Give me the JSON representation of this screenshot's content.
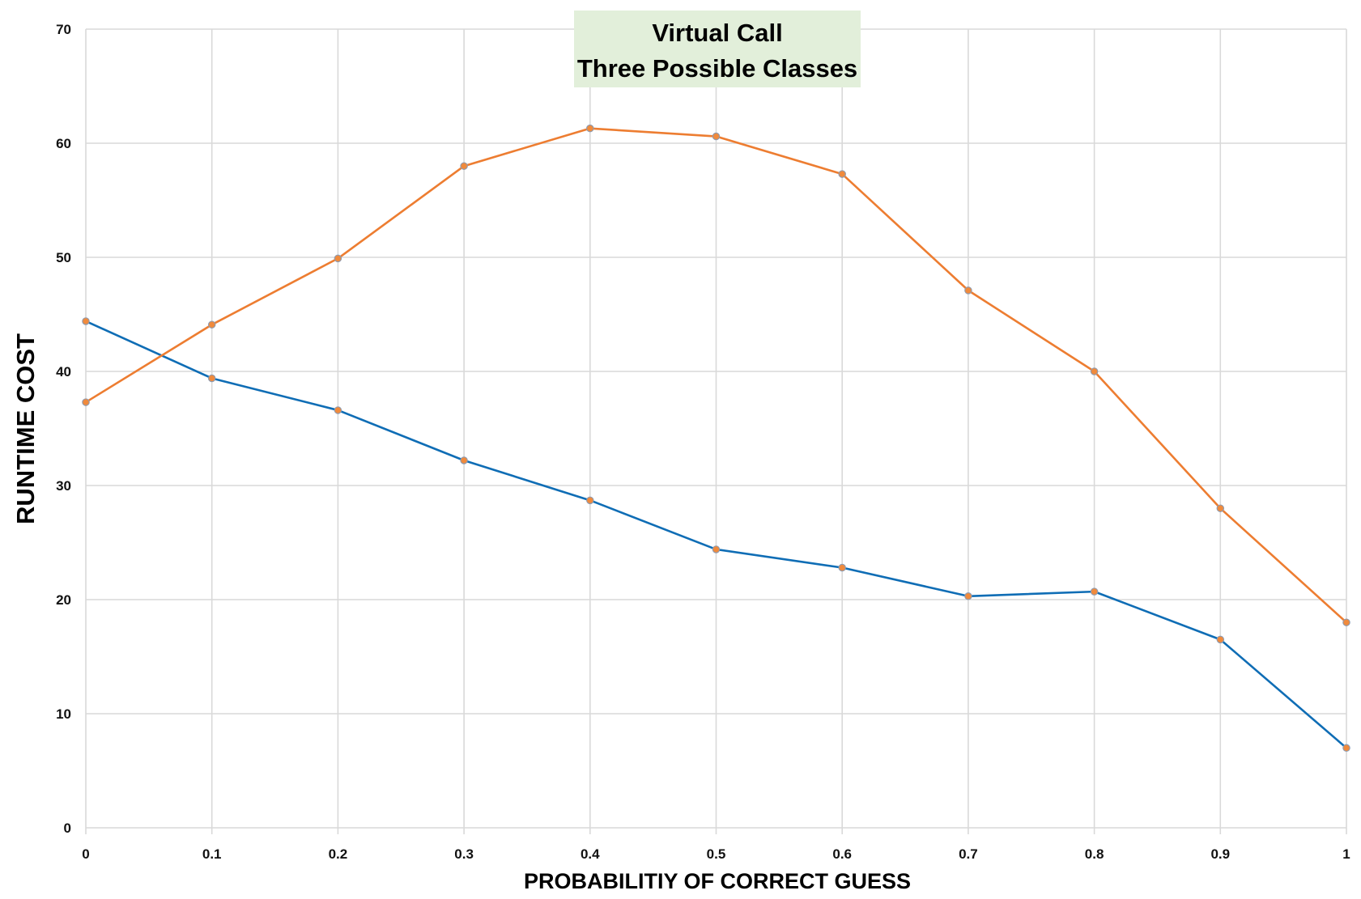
{
  "chart_data": {
    "type": "line",
    "title": "Virtual Call",
    "subtitle": "Three Possible Classes",
    "xlabel": "PROBABILITIY OF CORRECT GUESS",
    "ylabel": "RUNTIME COST",
    "x": [
      0,
      0.1,
      0.2,
      0.3,
      0.4,
      0.5,
      0.6,
      0.7,
      0.8,
      0.9,
      1
    ],
    "x_tick_labels": [
      "0",
      "0.1",
      "0.2",
      "0.3",
      "0.4",
      "0.5",
      "0.6",
      "0.7",
      "0.8",
      "0.9",
      "1"
    ],
    "y_ticks": [
      0,
      10,
      20,
      30,
      40,
      50,
      60,
      70
    ],
    "xlim": [
      0,
      1
    ],
    "ylim": [
      0,
      70
    ],
    "grid": true,
    "legend": "none",
    "title_background": "#e2efda",
    "series": [
      {
        "color": "#0f6db5",
        "marker_color": "#f08a3c",
        "values": [
          44.4,
          39.4,
          36.6,
          32.2,
          28.7,
          24.4,
          22.8,
          20.3,
          20.7,
          16.5,
          7.0
        ]
      },
      {
        "color": "#ed7d31",
        "marker_color": "#f08a3c",
        "values": [
          37.3,
          44.1,
          49.9,
          58.0,
          61.3,
          60.6,
          57.3,
          47.1,
          40.0,
          28.0,
          18.0
        ]
      }
    ]
  }
}
